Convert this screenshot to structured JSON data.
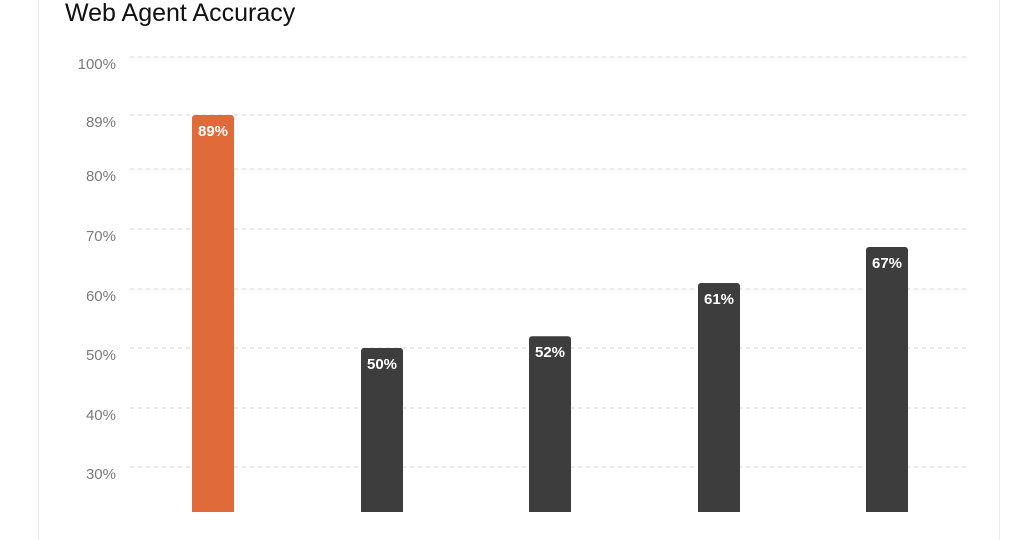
{
  "chart_data": {
    "type": "bar",
    "title": "Web Agent Accuracy",
    "xlabel": "",
    "ylabel": "",
    "y_ticks": [
      "100%",
      "89%",
      "80%",
      "70%",
      "60%",
      "50%",
      "40%",
      "30%"
    ],
    "y_tick_values": [
      100,
      89,
      80,
      70,
      60,
      50,
      40,
      30
    ],
    "values": [
      89,
      50,
      52,
      61,
      67
    ],
    "data_labels": [
      "89%",
      "50%",
      "52%",
      "61%",
      "67%"
    ],
    "bar_colors": [
      "#e06a3a",
      "#3d3d3d",
      "#3d3d3d",
      "#3d3d3d",
      "#3d3d3d"
    ],
    "grid": true,
    "legend": "none"
  }
}
